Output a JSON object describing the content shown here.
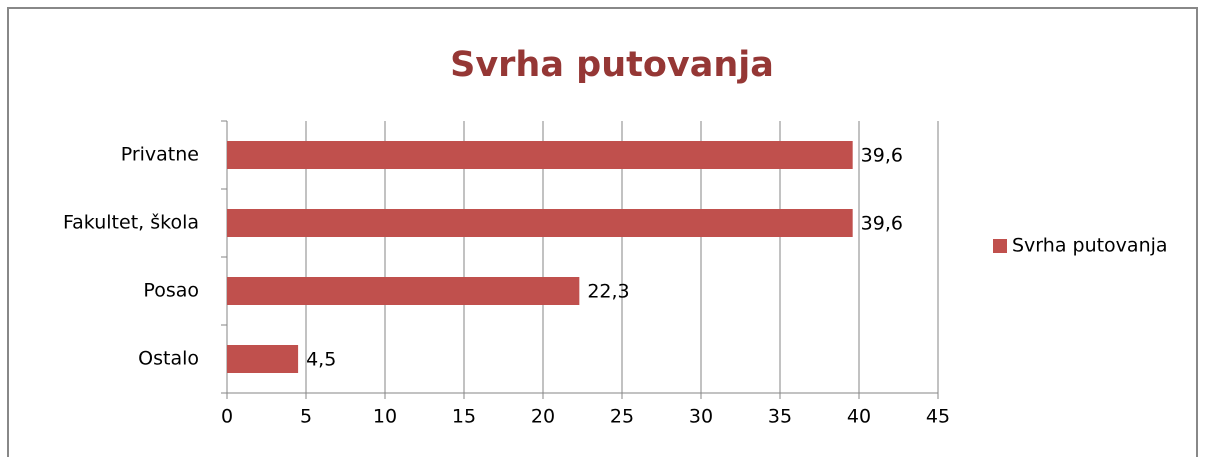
{
  "chart_data": {
    "type": "bar",
    "orientation": "horizontal",
    "title": "Svrha putovanja",
    "categories": [
      "Privatne",
      "Fakultet, škola",
      "Posao",
      "Ostalo"
    ],
    "series": [
      {
        "name": "Svrha putovanja",
        "color": "#c0504d",
        "values": [
          39.6,
          39.6,
          22.3,
          4.5
        ],
        "value_labels": [
          "39,6",
          "39,6",
          "22,3",
          "4,5"
        ]
      }
    ],
    "xlim": [
      0,
      45
    ],
    "xticks": [
      0,
      5,
      10,
      15,
      20,
      25,
      30,
      35,
      40,
      45
    ],
    "grid": true,
    "legend": "right"
  }
}
